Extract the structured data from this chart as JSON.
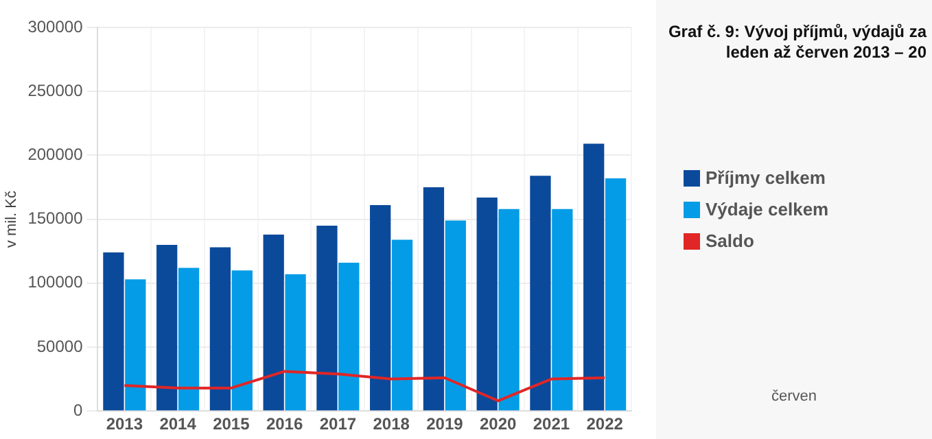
{
  "chart_data": {
    "type": "bar",
    "title": "Graf č. 9: Vývoj příjmů, výdajů za leden až červen 2013 – 20",
    "ylabel": "v mil. Kč",
    "categories": [
      "2013",
      "2014",
      "2015",
      "2016",
      "2017",
      "2018",
      "2019",
      "2020",
      "2021",
      "2022"
    ],
    "series": [
      {
        "name": "Příjmy celkem",
        "color": "#0b4a9b",
        "values": [
          124000,
          130000,
          128000,
          138000,
          145000,
          161000,
          175000,
          167000,
          184000,
          209000
        ]
      },
      {
        "name": "Výdaje celkem",
        "color": "#049ce6",
        "values": [
          103000,
          112000,
          110000,
          107000,
          116000,
          134000,
          149000,
          158000,
          158000,
          182000
        ]
      },
      {
        "name": "Saldo",
        "type": "line",
        "color": "#e02626",
        "values": [
          20000,
          18000,
          18000,
          31000,
          29000,
          25000,
          26000,
          8000,
          25000,
          26000
        ]
      }
    ],
    "ylim": [
      0,
      300000
    ],
    "yticks": [
      0,
      50000,
      100000,
      150000,
      200000,
      250000,
      300000
    ],
    "grid": true,
    "legend": "right",
    "marker": "none",
    "annotations": [
      "červen"
    ]
  }
}
